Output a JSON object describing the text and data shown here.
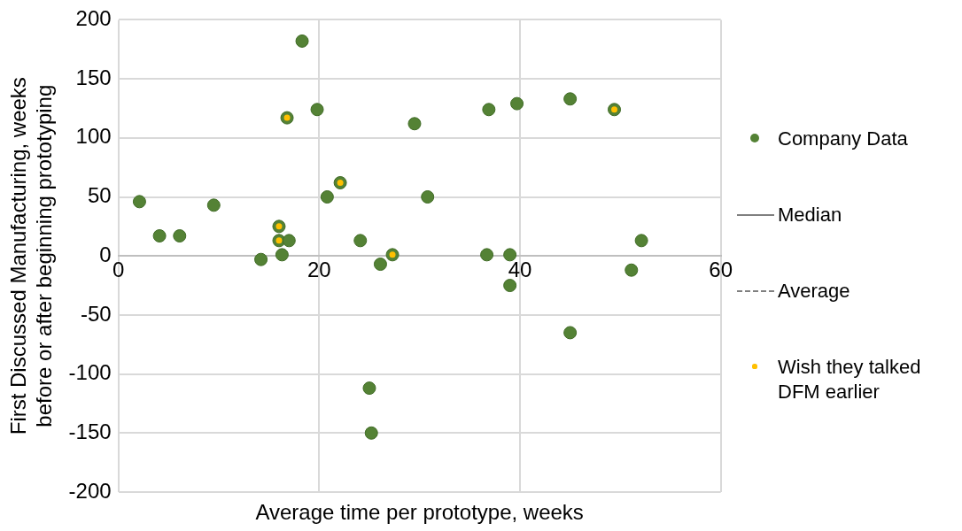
{
  "chart_data": {
    "type": "scatter",
    "xlabel": "Average time per prototype, weeks",
    "ylabel": "First Discussed Manufacturing, weeks before or after beginning prototyping",
    "xlim": [
      0,
      60
    ],
    "xticks": [
      0,
      20,
      40,
      60
    ],
    "ylim": [
      -200,
      200
    ],
    "yticks": [
      -200,
      -150,
      -100,
      -50,
      0,
      50,
      100,
      150,
      200
    ],
    "grid": true,
    "legend": "right",
    "marker": "circle",
    "series": [
      {
        "name": "Company Data",
        "color": "#548235",
        "x": [
          2.1,
          4.1,
          6.1,
          9.5,
          14.2,
          16,
          16,
          16.3,
          17,
          16.8,
          18.3,
          19.8,
          20.8,
          22.1,
          24.1,
          26.1,
          27.3,
          29.5,
          30.8,
          36.7,
          39,
          39,
          36.9,
          39.7,
          45,
          45,
          49.4,
          51.1,
          52.1,
          25,
          25.2
        ],
        "values": [
          46,
          17,
          17,
          43,
          -3,
          25,
          13,
          1,
          13,
          117,
          182,
          124,
          50,
          62,
          13,
          -7,
          1,
          112,
          50,
          1,
          1,
          -25,
          124,
          129,
          133,
          -65,
          124,
          -12,
          13,
          -112,
          -150
        ]
      },
      {
        "name": "Median",
        "type": "line",
        "color": "#808080",
        "line_style": "solid",
        "marker": "none"
      },
      {
        "name": "Average",
        "type": "line",
        "color": "#808080",
        "line_style": "dashed",
        "marker": "none"
      },
      {
        "name": "Wish they talked DFM earlier",
        "color": "#ffc000",
        "x": [
          16,
          16,
          16.8,
          22.1,
          27.3,
          49.4
        ],
        "values": [
          25,
          13,
          117,
          62,
          1,
          124
        ]
      }
    ]
  }
}
